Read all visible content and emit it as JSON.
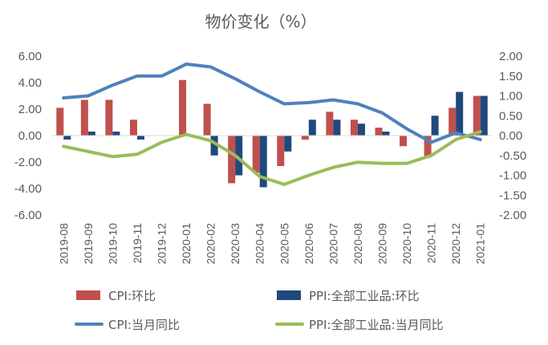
{
  "chart_data": {
    "type": "bar+line",
    "title": "物价变化（%）",
    "categories": [
      "2019-08",
      "2019-09",
      "2019-10",
      "2019-11",
      "2019-12",
      "2020-01",
      "2020-02",
      "2020-03",
      "2020-04",
      "2020-05",
      "2020-06",
      "2020-07",
      "2020-08",
      "2020-09",
      "2020-10",
      "2020-11",
      "2020-12",
      "2021-01"
    ],
    "left_axis": {
      "ylim": [
        -6,
        6
      ],
      "ticks": [
        "6.00",
        "4.00",
        "2.00",
        "0.00",
        "-2.00",
        "-4.00",
        "-6.00"
      ]
    },
    "right_axis": {
      "ylim": [
        -2,
        2
      ],
      "ticks": [
        "2.00",
        "1.50",
        "1.00",
        "0.50",
        "0.00",
        "-0.50",
        "-1.00",
        "-1.50",
        "-2.00"
      ]
    },
    "series": [
      {
        "name": "CPI:环比",
        "type": "bar",
        "axis": "left",
        "color": "#c0504d",
        "values": [
          2.1,
          2.7,
          2.7,
          1.2,
          0.0,
          4.2,
          2.4,
          -3.6,
          -2.8,
          -2.3,
          -0.3,
          1.8,
          1.2,
          0.6,
          -0.8,
          -1.6,
          2.1,
          3.0
        ]
      },
      {
        "name": "PPI:全部工业品:环比",
        "type": "bar",
        "axis": "left",
        "color": "#1f497d",
        "values": [
          -0.3,
          0.3,
          0.3,
          -0.3,
          0.0,
          0.0,
          -1.5,
          -3.0,
          -3.9,
          -1.2,
          1.2,
          1.2,
          0.9,
          0.3,
          0.0,
          1.5,
          3.3,
          3.0
        ]
      },
      {
        "name": "CPI:当月同比",
        "type": "line",
        "axis": "right",
        "color": "#4f81bd",
        "values": [
          0.95,
          1.0,
          1.27,
          1.5,
          1.5,
          1.8,
          1.73,
          1.43,
          1.1,
          0.8,
          0.83,
          0.9,
          0.8,
          0.57,
          0.17,
          -0.17,
          0.07,
          -0.1
        ]
      },
      {
        "name": "PPI:全部工业品:当月同比",
        "type": "line",
        "axis": "right",
        "color": "#9bbb59",
        "values": [
          -0.27,
          -0.4,
          -0.53,
          -0.47,
          -0.17,
          0.03,
          -0.13,
          -0.5,
          -1.03,
          -1.23,
          -1.0,
          -0.8,
          -0.67,
          -0.7,
          -0.7,
          -0.5,
          -0.1,
          0.1
        ]
      }
    ],
    "legend_position": "bottom",
    "grid": false
  }
}
